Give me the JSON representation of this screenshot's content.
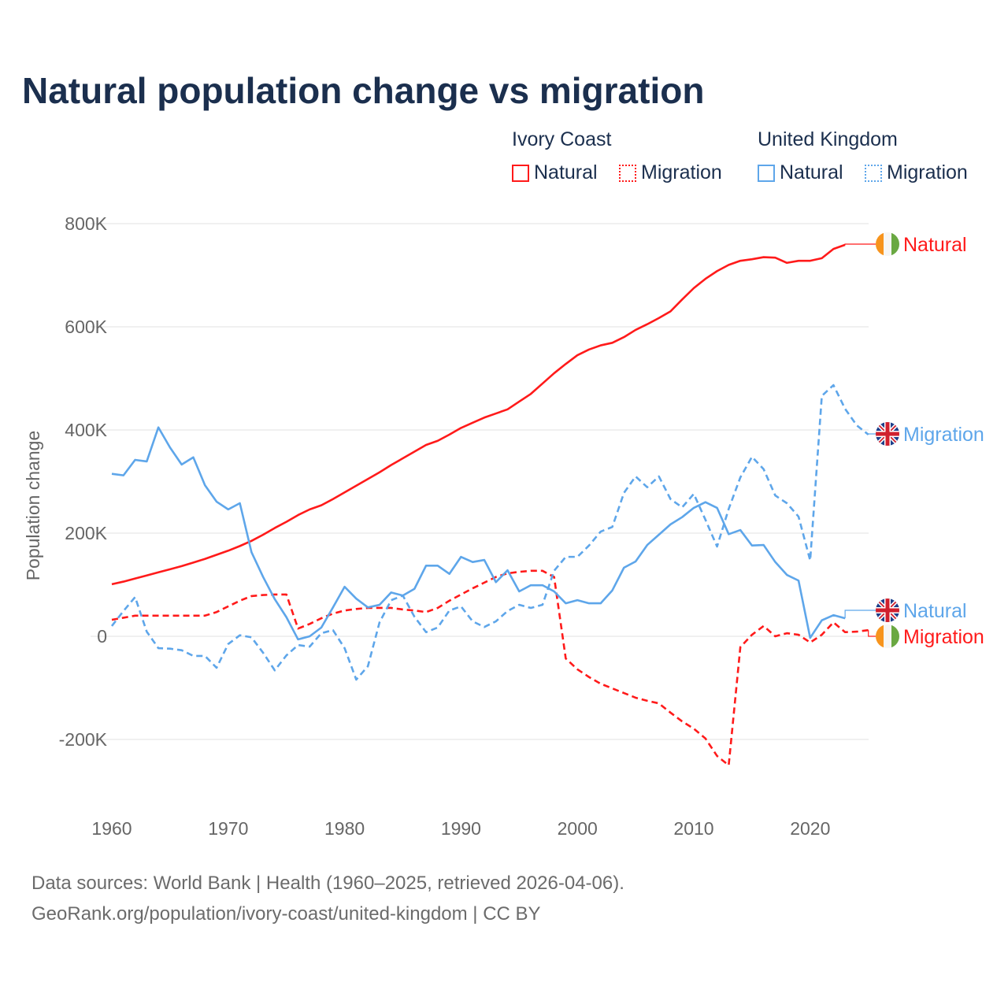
{
  "title": "Natural population change vs migration",
  "legend": {
    "groups": [
      {
        "name": "Ivory Coast",
        "items": [
          "Natural",
          "Migration"
        ]
      },
      {
        "name": "United Kingdom",
        "items": [
          "Natural",
          "Migration"
        ]
      }
    ]
  },
  "footer": {
    "line1": "Data sources: World Bank | Health (1960–2025, retrieved 2026-04-06).",
    "line2": "GeoRank.org/population/ivory-coast/united-kingdom | CC BY"
  },
  "colors": {
    "ivory_coast": "#ff1a1a",
    "united_kingdom": "#5ea6ea",
    "title": "#1b2f4e",
    "grid": "#e6e6e6"
  },
  "chart_data": {
    "type": "line",
    "title": "Natural population change vs migration",
    "xlabel": "",
    "ylabel": "Population change",
    "xlim": [
      1960,
      2025
    ],
    "ylim": [
      -300000,
      800000
    ],
    "x_ticks": [
      1960,
      1970,
      1980,
      1990,
      2000,
      2010,
      2020
    ],
    "x_tick_labels": [
      "1960",
      "1970",
      "1980",
      "1990",
      "2000",
      "2010",
      "2020"
    ],
    "y_ticks": [
      -200000,
      0,
      200000,
      400000,
      600000,
      800000
    ],
    "y_tick_labels": [
      "-200K",
      "0",
      "200K",
      "400K",
      "600K",
      "800K"
    ],
    "grid": true,
    "legend_position": "top-right",
    "series": [
      {
        "name": "Ivory Coast Natural",
        "end_label": "Natural",
        "country": "ivory_coast",
        "style": "solid",
        "start_year": 1960,
        "values": [
          101,
          106,
          112,
          118,
          124,
          130,
          136,
          143,
          150,
          158,
          166,
          175,
          185,
          197,
          210,
          222,
          235,
          246,
          254,
          266,
          279,
          292,
          305,
          318,
          332,
          345,
          358,
          371,
          379,
          391,
          404,
          414,
          424,
          432,
          440,
          455,
          470,
          490,
          510,
          528,
          545,
          556,
          564,
          569,
          580,
          594,
          605,
          617,
          630,
          653,
          675,
          693,
          708,
          720,
          728,
          731,
          735,
          734,
          724,
          728,
          728,
          733,
          751,
          759
        ]
      },
      {
        "name": "Ivory Coast Migration",
        "end_label": "Migration",
        "country": "ivory_coast",
        "style": "dashed",
        "start_year": 1960,
        "values": [
          32,
          36,
          40,
          40,
          40,
          40,
          40,
          40,
          40,
          47,
          58,
          69,
          78,
          80,
          81,
          81,
          15,
          24,
          35,
          44,
          50,
          53,
          55,
          55,
          55,
          52,
          50,
          47,
          55,
          69,
          81,
          93,
          104,
          115,
          122,
          125,
          127,
          127,
          115,
          -43,
          -64,
          -79,
          -92,
          -101,
          -110,
          -119,
          -125,
          -130,
          -148,
          -165,
          -179,
          -198,
          -232,
          -250,
          -21,
          3,
          20,
          0,
          6,
          3,
          -12,
          3,
          27,
          8,
          9,
          12
        ]
      },
      {
        "name": "United Kingdom Natural",
        "end_label": "Natural",
        "country": "united_kingdom",
        "style": "solid",
        "start_year": 1960,
        "values": [
          315,
          312,
          342,
          339,
          405,
          366,
          333,
          347,
          293,
          261,
          246,
          258,
          163,
          115,
          72,
          37,
          -6,
          0,
          17,
          56,
          96,
          73,
          56,
          61,
          85,
          79,
          92,
          137,
          137,
          121,
          154,
          144,
          148,
          105,
          128,
          87,
          99,
          99,
          87,
          64,
          70,
          64,
          64,
          89,
          133,
          145,
          177,
          197,
          217,
          231,
          249,
          260,
          249,
          198,
          206,
          176,
          177,
          144,
          119,
          108,
          -3,
          31,
          41,
          35
        ]
      },
      {
        "name": "United Kingdom Migration",
        "end_label": "Migration",
        "country": "united_kingdom",
        "style": "dashed",
        "start_year": 1960,
        "values": [
          20,
          49,
          76,
          9,
          -23,
          -24,
          -27,
          -38,
          -38,
          -61,
          -15,
          2,
          -2,
          -32,
          -66,
          -37,
          -17,
          -20,
          6,
          12,
          -23,
          -84,
          -58,
          27,
          70,
          79,
          38,
          8,
          17,
          50,
          58,
          29,
          18,
          29,
          49,
          61,
          55,
          61,
          127,
          154,
          154,
          176,
          203,
          212,
          278,
          310,
          289,
          310,
          266,
          250,
          276,
          226,
          174,
          247,
          308,
          348,
          324,
          273,
          258,
          232,
          147,
          466,
          487,
          441,
          409,
          391
        ]
      }
    ],
    "units": "thousands"
  }
}
